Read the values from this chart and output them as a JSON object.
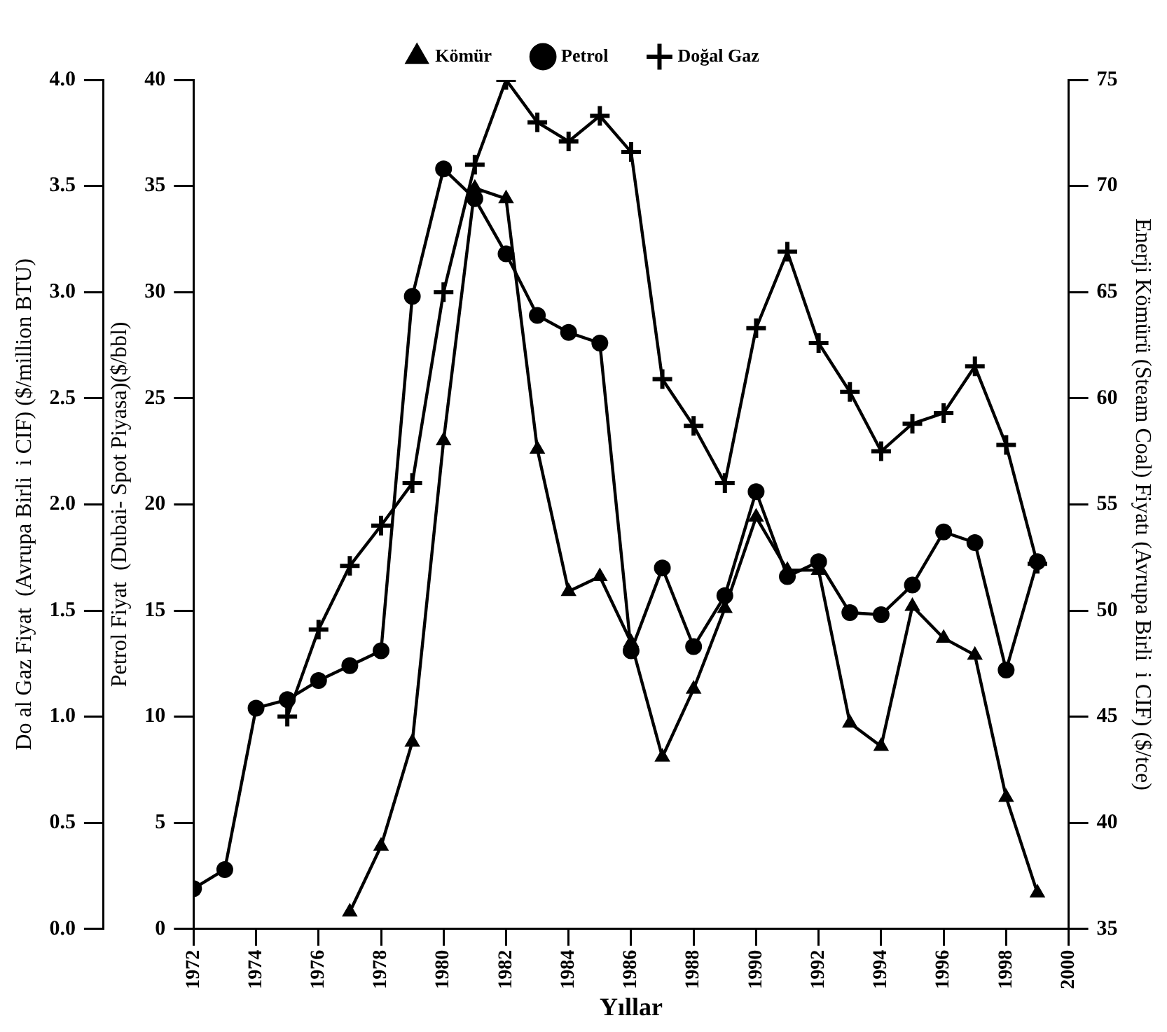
{
  "chart_data": {
    "type": "line",
    "xlabel": "Yıllar",
    "ylabel": "Do al Gaz Fiyat  (Avrupa Birli  i CIF) ($/million BTU)",
    "y3label": "Petrol Fiyat  (Dubai- Spot Piyasa)($/bbl)",
    "y2label": "Enerji Kömürü (Steam Coal) Fiyatı (Avrupa Birli  i CIF) ($/tce)",
    "xlim": [
      1972,
      2000
    ],
    "xticks": [
      1972,
      1974,
      1976,
      1978,
      1980,
      1982,
      1984,
      1986,
      1988,
      1990,
      1992,
      1994,
      1996,
      1998,
      2000
    ],
    "ylim": [
      0,
      4
    ],
    "yticks": [
      {
        "value": 0,
        "label": "0.0"
      },
      {
        "value": 0.5,
        "label": "0.5"
      },
      {
        "value": 1,
        "label": "1.0"
      },
      {
        "value": 1.5,
        "label": "1.5"
      },
      {
        "value": 2,
        "label": "2.0"
      },
      {
        "value": 2.5,
        "label": "2.5"
      },
      {
        "value": 3,
        "label": "3.0"
      },
      {
        "value": 3.5,
        "label": "3.5"
      },
      {
        "value": 4,
        "label": "4.0"
      }
    ],
    "y3lim": [
      0,
      40
    ],
    "y3ticks": [
      0,
      5,
      10,
      15,
      20,
      25,
      30,
      35,
      40
    ],
    "y2lim": [
      35,
      75
    ],
    "y2ticks": [
      35,
      40,
      45,
      50,
      55,
      60,
      65,
      70,
      75
    ],
    "grid": false,
    "legend": "top",
    "line_style": "solid",
    "series": [
      {
        "name": "Kömür",
        "color": "#000000",
        "marker": "triangle",
        "axis": "y2",
        "x": [
          1977,
          1978,
          1979,
          1980,
          1981,
          1982,
          1983,
          1984,
          1985,
          1986,
          1987,
          1988,
          1989,
          1990,
          1991,
          1992,
          1993,
          1994,
          1995,
          1996,
          1997,
          1998,
          1999
        ],
        "values": [
          35.8,
          38.9,
          43.8,
          58.0,
          69.9,
          69.4,
          57.6,
          50.9,
          51.6,
          48.5,
          43.1,
          46.3,
          50.1,
          54.4,
          51.9,
          51.9,
          44.7,
          43.6,
          50.2,
          48.7,
          47.9,
          41.2,
          36.7
        ]
      },
      {
        "name": "Petrol",
        "color": "#000000",
        "marker": "circle",
        "axis": "y3",
        "x": [
          1972,
          1973,
          1974,
          1975,
          1976,
          1977,
          1978,
          1979,
          1980,
          1981,
          1982,
          1983,
          1984,
          1985,
          1986,
          1987,
          1988,
          1989,
          1990,
          1991,
          1992,
          1993,
          1994,
          1995,
          1996,
          1997,
          1998,
          1999
        ],
        "values": [
          1.9,
          2.8,
          10.4,
          10.8,
          11.7,
          12.4,
          13.1,
          29.8,
          35.8,
          34.4,
          31.8,
          28.9,
          28.1,
          27.6,
          13.1,
          17.0,
          13.3,
          15.7,
          20.6,
          16.6,
          17.3,
          14.9,
          14.8,
          16.2,
          18.7,
          18.2,
          12.2,
          17.3
        ]
      },
      {
        "name": "Doğal Gaz",
        "color": "#000000",
        "marker": "cross",
        "axis": "y",
        "x": [
          1975,
          1976,
          1977,
          1978,
          1979,
          1980,
          1981,
          1982,
          1983,
          1984,
          1985,
          1986,
          1987,
          1988,
          1989,
          1990,
          1991,
          1992,
          1993,
          1994,
          1995,
          1996,
          1997,
          1998,
          1999
        ],
        "values": [
          1.0,
          1.41,
          1.71,
          1.9,
          2.1,
          3.0,
          3.6,
          4.0,
          3.8,
          3.71,
          3.83,
          3.66,
          2.59,
          2.37,
          2.1,
          2.83,
          3.19,
          2.76,
          2.53,
          2.25,
          2.38,
          2.43,
          2.65,
          2.28,
          1.72
        ]
      }
    ]
  }
}
